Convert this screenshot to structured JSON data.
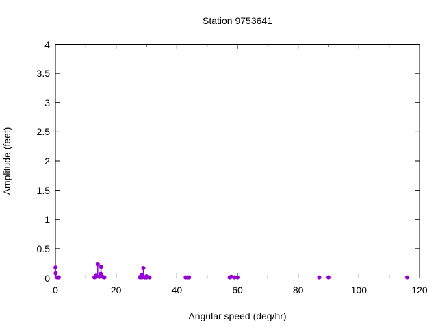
{
  "chart_data": {
    "type": "scatter",
    "title": "Station 9753641",
    "xlabel": "Angular speed (deg/hr)",
    "ylabel": "Amplitude (feet)",
    "xlim": [
      0,
      120
    ],
    "ylim": [
      0,
      4
    ],
    "x_ticks": [
      0,
      20,
      40,
      60,
      80,
      100,
      120
    ],
    "x_tick_labels": [
      "0",
      "20",
      "40",
      "60",
      "80",
      "100",
      "120"
    ],
    "x_minor_ticks": [
      10,
      30,
      50,
      70,
      90,
      110
    ],
    "y_ticks": [
      0,
      0.5,
      1,
      1.5,
      2,
      2.5,
      3,
      3.5,
      4
    ],
    "y_tick_labels": [
      "0",
      "0.5",
      "1",
      "1.5",
      "2",
      "2.5",
      "3",
      "3.5",
      "4"
    ],
    "grid": "off",
    "legend": "none",
    "marker": "filled-circle-with-impulse-stem",
    "point_color": "#9400d3",
    "axis_color": "#000000",
    "points": [
      [
        0.041,
        0.18
      ],
      [
        0.082,
        0.08
      ],
      [
        0.544,
        0.01
      ],
      [
        1.016,
        0.01
      ],
      [
        1.098,
        0.01
      ],
      [
        12.854,
        0.01
      ],
      [
        13.399,
        0.04
      ],
      [
        13.472,
        0.02
      ],
      [
        13.943,
        0.24
      ],
      [
        14.497,
        0.02
      ],
      [
        14.959,
        0.07
      ],
      [
        15.0,
        0.03
      ],
      [
        15.041,
        0.19
      ],
      [
        15.585,
        0.02
      ],
      [
        16.139,
        0.01
      ],
      [
        27.895,
        0.01
      ],
      [
        27.968,
        0.02
      ],
      [
        28.44,
        0.05
      ],
      [
        28.512,
        0.01
      ],
      [
        28.984,
        0.17
      ],
      [
        29.456,
        0.01
      ],
      [
        29.528,
        0.01
      ],
      [
        29.959,
        0.01
      ],
      [
        30.0,
        0.03
      ],
      [
        30.041,
        0.01
      ],
      [
        30.082,
        0.02
      ],
      [
        31.016,
        0.01
      ],
      [
        42.927,
        0.01
      ],
      [
        43.476,
        0.01
      ],
      [
        44.025,
        0.01
      ],
      [
        57.424,
        0.01
      ],
      [
        57.968,
        0.02
      ],
      [
        58.984,
        0.01
      ],
      [
        60.0,
        0.01
      ],
      [
        86.952,
        0.01
      ],
      [
        90.0,
        0.01
      ],
      [
        115.936,
        0.01
      ]
    ]
  }
}
